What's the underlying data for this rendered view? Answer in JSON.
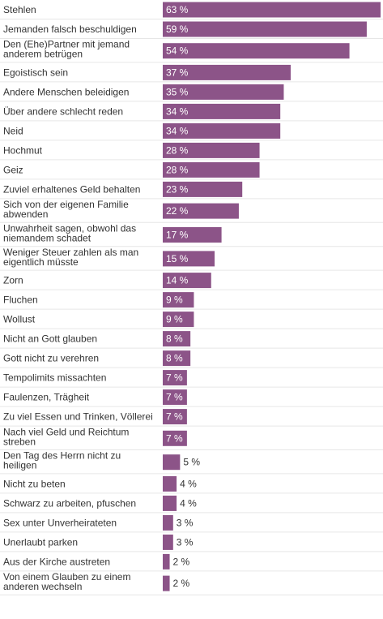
{
  "chart_data": {
    "type": "bar",
    "orientation": "horizontal",
    "categories": [
      [
        "Stehlen"
      ],
      [
        "Jemanden falsch beschuldigen"
      ],
      [
        "Den (Ehe)Partner mit jemand",
        "anderem betrügen"
      ],
      [
        "Egoistisch sein"
      ],
      [
        "Andere Menschen beleidigen"
      ],
      [
        "Über andere schlecht reden"
      ],
      [
        "Neid"
      ],
      [
        "Hochmut"
      ],
      [
        "Geiz"
      ],
      [
        "Zuviel erhaltenes Geld behalten"
      ],
      [
        "Sich von der eigenen Familie",
        "abwenden"
      ],
      [
        "Unwahrheit sagen, obwohl das",
        "niemandem schadet"
      ],
      [
        "Weniger Steuer zahlen als man",
        "eigentlich müsste"
      ],
      [
        "Zorn"
      ],
      [
        "Fluchen"
      ],
      [
        "Wollust"
      ],
      [
        "Nicht an Gott glauben"
      ],
      [
        "Gott nicht zu verehren"
      ],
      [
        "Tempolimits missachten"
      ],
      [
        "Faulenzen, Trägheit"
      ],
      [
        "Zu viel Essen und Trinken, Völlerei"
      ],
      [
        "Nach viel Geld und Reichtum",
        "streben"
      ],
      [
        "Den Tag des Herrn nicht zu",
        "heiligen"
      ],
      [
        "Nicht zu beten"
      ],
      [
        "Schwarz zu arbeiten, pfuschen"
      ],
      [
        "Sex unter Unverheirateten"
      ],
      [
        "Unerlaubt parken"
      ],
      [
        "Aus der Kirche austreten"
      ],
      [
        "Von einem Glauben zu einem",
        "anderen wechseln"
      ]
    ],
    "values": [
      63,
      59,
      54,
      37,
      35,
      34,
      34,
      28,
      28,
      23,
      22,
      17,
      15,
      14,
      9,
      9,
      8,
      8,
      7,
      7,
      7,
      7,
      5,
      4,
      4,
      3,
      3,
      2,
      2
    ],
    "value_suffix": " %",
    "xlim": [
      0,
      63
    ],
    "grid": false,
    "colors": {
      "bar": "#8c5488",
      "divider": "#e6e6e6",
      "label": "#333333",
      "value_inside": "#ffffff",
      "value_outside": "#333333"
    }
  }
}
